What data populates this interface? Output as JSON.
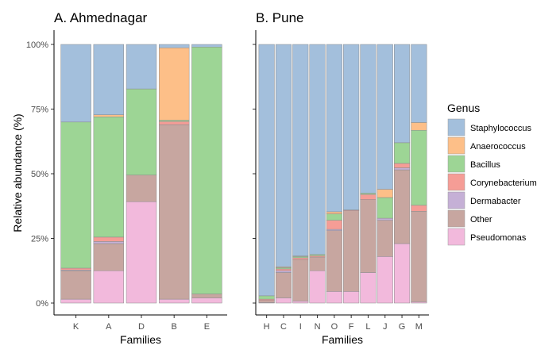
{
  "chart_data": [
    {
      "type": "bar",
      "stacked": true,
      "title": "A. Ahmednagar",
      "xlabel": "Families",
      "ylabel": "Relative abundance (%)",
      "ylim": [
        0,
        100
      ],
      "yticks": [
        "0%",
        "25%",
        "50%",
        "75%",
        "100%"
      ],
      "grid": false,
      "categories": [
        "K",
        "A",
        "D",
        "B",
        "E"
      ],
      "series": [
        {
          "name": "Pseudomonas",
          "values": [
            1.5,
            12.5,
            39.2,
            1.5,
            2.0
          ]
        },
        {
          "name": "Other",
          "values": [
            11.0,
            10.5,
            10.3,
            67.5,
            1.5
          ]
        },
        {
          "name": "Dermabacter",
          "values": [
            0.3,
            0.8,
            0.0,
            0.0,
            0.0
          ]
        },
        {
          "name": "Corynebacterium",
          "values": [
            0.7,
            1.7,
            0.0,
            1.2,
            0.0
          ]
        },
        {
          "name": "Bacillus",
          "values": [
            56.5,
            46.5,
            33.3,
            0.5,
            95.5
          ]
        },
        {
          "name": "Anaerococcus",
          "values": [
            0.0,
            0.8,
            0.0,
            28.0,
            0.0
          ]
        },
        {
          "name": "Staphylococcus",
          "values": [
            30.0,
            27.2,
            17.2,
            1.3,
            1.0
          ]
        }
      ]
    },
    {
      "type": "bar",
      "stacked": true,
      "title": "B. Pune",
      "xlabel": "Families",
      "ylabel": "",
      "ylim": [
        0,
        100
      ],
      "grid": false,
      "categories": [
        "H",
        "C",
        "I",
        "N",
        "O",
        "F",
        "L",
        "J",
        "G",
        "M"
      ],
      "series": [
        {
          "name": "Pseudomonas",
          "values": [
            0.2,
            2.0,
            0.8,
            12.5,
            4.5,
            4.5,
            11.8,
            18.0,
            23.0,
            0.5
          ]
        },
        {
          "name": "Other",
          "values": [
            0.8,
            9.8,
            16.0,
            5.3,
            23.5,
            31.2,
            28.2,
            14.0,
            28.5,
            35.0
          ]
        },
        {
          "name": "Dermabacter",
          "values": [
            0.0,
            0.7,
            0.0,
            0.0,
            0.5,
            0.0,
            0.0,
            0.8,
            0.8,
            0.0
          ]
        },
        {
          "name": "Corynebacterium",
          "values": [
            0.5,
            0.7,
            0.7,
            0.5,
            3.5,
            0.3,
            2.0,
            0.0,
            1.7,
            2.3
          ]
        },
        {
          "name": "Bacillus",
          "values": [
            1.3,
            0.5,
            0.5,
            0.5,
            2.5,
            0.0,
            0.5,
            8.0,
            8.0,
            29.0
          ]
        },
        {
          "name": "Anaerococcus",
          "values": [
            0.0,
            0.3,
            0.2,
            0.0,
            0.8,
            0.0,
            0.0,
            3.2,
            0.0,
            3.0
          ]
        },
        {
          "name": "Staphylococcus",
          "values": [
            97.2,
            86.0,
            81.8,
            81.2,
            64.7,
            64.0,
            57.5,
            56.0,
            38.0,
            30.2
          ]
        }
      ]
    }
  ],
  "legend": {
    "title": "Genus",
    "placement": "right",
    "items": [
      "Staphylococcus",
      "Anaerococcus",
      "Bacillus",
      "Corynebacterium",
      "Dermabacter",
      "Other",
      "Pseudomonas"
    ]
  },
  "colors": {
    "Staphylococcus": "#a3bfdc",
    "Anaerococcus": "#fdbf88",
    "Bacillus": "#9dd595",
    "Corynebacterium": "#f59d96",
    "Dermabacter": "#c5b0d6",
    "Other": "#c7a6a0",
    "Pseudomonas": "#f2b9dc"
  }
}
